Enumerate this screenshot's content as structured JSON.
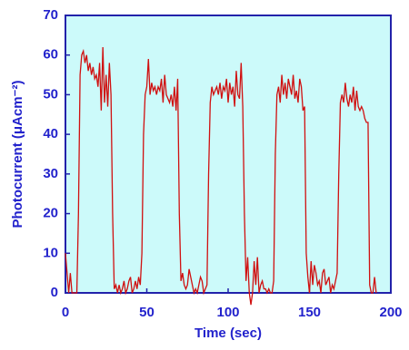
{
  "chart_data": {
    "type": "line",
    "xlabel": "Time (sec)",
    "ylabel": "Photocurrent (μAcm⁻²)",
    "xlim": [
      0,
      200
    ],
    "xticks": [
      0,
      50,
      100,
      150,
      200
    ],
    "ylim": [
      0,
      70
    ],
    "yticks": [
      0,
      10,
      20,
      30,
      40,
      50,
      60,
      70
    ],
    "x": [
      0,
      1,
      2,
      3,
      4,
      5,
      6,
      7,
      8,
      9,
      10,
      11,
      12,
      13,
      14,
      15,
      16,
      17,
      18,
      19,
      20,
      21,
      22,
      23,
      24,
      25,
      26,
      27,
      28,
      29,
      30,
      31,
      32,
      33,
      34,
      35,
      36,
      37,
      38,
      39,
      40,
      41,
      42,
      43,
      44,
      45,
      46,
      47,
      48,
      49,
      50,
      51,
      52,
      53,
      54,
      55,
      56,
      57,
      58,
      59,
      60,
      61,
      62,
      63,
      64,
      65,
      66,
      67,
      68,
      69,
      70,
      71,
      72,
      73,
      74,
      75,
      76,
      77,
      78,
      79,
      80,
      81,
      82,
      83,
      84,
      85,
      86,
      87,
      88,
      89,
      90,
      91,
      92,
      93,
      94,
      95,
      96,
      97,
      98,
      99,
      100,
      101,
      102,
      103,
      104,
      105,
      106,
      107,
      108,
      109,
      110,
      111,
      112,
      113,
      114,
      115,
      116,
      117,
      118,
      119,
      120,
      121,
      122,
      123,
      124,
      125,
      126,
      127,
      128,
      129,
      130,
      131,
      132,
      133,
      134,
      135,
      136,
      137,
      138,
      139,
      140,
      141,
      142,
      143,
      144,
      145,
      146,
      147,
      148,
      149,
      150,
      151,
      152,
      153,
      154,
      155,
      156,
      157,
      158,
      159,
      160,
      161,
      162,
      163,
      164,
      165,
      166,
      167,
      168,
      169,
      170,
      171,
      172,
      173,
      174,
      175,
      176,
      177,
      178,
      179,
      180,
      181,
      182,
      183,
      184,
      185,
      186,
      187,
      188,
      189,
      190,
      191
    ],
    "series": [
      {
        "color": "#d01010",
        "values": [
          10,
          5,
          0,
          5,
          0,
          0,
          0,
          0,
          20,
          55,
          60,
          61,
          58,
          60,
          56,
          58,
          55,
          57,
          54,
          55,
          52,
          58,
          46,
          62,
          48,
          55,
          47,
          58,
          50,
          20,
          1,
          2,
          0,
          2,
          0,
          1,
          3,
          0,
          1,
          3,
          4,
          0,
          1,
          3,
          1,
          4,
          2,
          10,
          40,
          50,
          52,
          59,
          50,
          53,
          51,
          52,
          50,
          52,
          51,
          54,
          48,
          55,
          50,
          49,
          48,
          50,
          47,
          52,
          46,
          54,
          20,
          3,
          5,
          2,
          1,
          2,
          6,
          4,
          2,
          0,
          1,
          0,
          2,
          4,
          3,
          0,
          1,
          2,
          30,
          48,
          52,
          50,
          51,
          52,
          50,
          53,
          49,
          52,
          51,
          54,
          48,
          53,
          50,
          52,
          47,
          56,
          50,
          49,
          58,
          47,
          20,
          3,
          9,
          0,
          -3,
          0,
          8,
          2,
          9,
          0,
          2,
          3,
          1,
          1,
          0,
          1,
          0,
          0,
          3,
          35,
          50,
          52,
          48,
          55,
          50,
          53,
          49,
          54,
          52,
          50,
          55,
          49,
          51,
          48,
          54,
          52,
          46,
          47,
          10,
          4,
          0,
          8,
          2,
          7,
          5,
          2,
          3,
          0,
          5,
          6,
          2,
          3,
          4,
          0,
          2,
          1,
          3,
          5,
          30,
          48,
          50,
          48,
          53,
          49,
          47,
          50,
          48,
          52,
          46,
          51,
          47,
          46,
          47,
          46,
          44,
          43,
          43,
          2,
          0,
          0,
          4,
          0
        ]
      }
    ],
    "grid": false
  }
}
